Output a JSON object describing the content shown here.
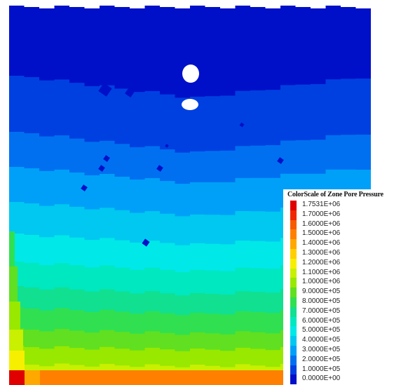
{
  "chart_data": {
    "type": "heatmap",
    "legend": {
      "title": "ColorScale of Zone Pore Pressure",
      "placement": "bottom-right",
      "entries": [
        {
          "label": "1.7531E+06",
          "value": 1753100,
          "color": "#e00000"
        },
        {
          "label": "1.7000E+06",
          "value": 1700000,
          "color": "#f02800"
        },
        {
          "label": "1.6000E+06",
          "value": 1600000,
          "color": "#f85a00"
        },
        {
          "label": "1.5000E+06",
          "value": 1500000,
          "color": "#ff8000"
        },
        {
          "label": "1.4000E+06",
          "value": 1400000,
          "color": "#ffa800"
        },
        {
          "label": "1.3000E+06",
          "value": 1300000,
          "color": "#ffd000"
        },
        {
          "label": "1.2000E+06",
          "value": 1200000,
          "color": "#f6f000"
        },
        {
          "label": "1.1000E+06",
          "value": 1100000,
          "color": "#c8f000"
        },
        {
          "label": "1.0000E+06",
          "value": 1000000,
          "color": "#98e800"
        },
        {
          "label": "9.0000E+05",
          "value": 900000,
          "color": "#60e020"
        },
        {
          "label": "8.0000E+05",
          "value": 800000,
          "color": "#30e050"
        },
        {
          "label": "7.0000E+05",
          "value": 700000,
          "color": "#10e090"
        },
        {
          "label": "6.0000E+05",
          "value": 600000,
          "color": "#00e8c0"
        },
        {
          "label": "5.0000E+05",
          "value": 500000,
          "color": "#00e8e8"
        },
        {
          "label": "4.0000E+05",
          "value": 400000,
          "color": "#00c8f0"
        },
        {
          "label": "3.0000E+05",
          "value": 300000,
          "color": "#00a0f8"
        },
        {
          "label": "2.0000E+05",
          "value": 200000,
          "color": "#0070f0"
        },
        {
          "label": "1.0000E+05",
          "value": 100000,
          "color": "#0040e0"
        },
        {
          "label": "0.0000E+00",
          "value": 0,
          "color": "#0010c8"
        }
      ]
    },
    "bands": [
      {
        "value": 0,
        "color": "#0010c8"
      },
      {
        "value": 100000,
        "color": "#0040e0"
      },
      {
        "value": 200000,
        "color": "#0070f0"
      },
      {
        "value": 300000,
        "color": "#00a0f8"
      },
      {
        "value": 400000,
        "color": "#00c8f0"
      },
      {
        "value": 500000,
        "color": "#00e8e8"
      },
      {
        "value": 600000,
        "color": "#00e8c0"
      },
      {
        "value": 700000,
        "color": "#10e090"
      },
      {
        "value": 800000,
        "color": "#30e050"
      },
      {
        "value": 900000,
        "color": "#60e020"
      },
      {
        "value": 1000000,
        "color": "#98e800"
      },
      {
        "value": 1100000,
        "color": "#c8f000"
      },
      {
        "value": 1200000,
        "color": "#f6f000"
      }
    ],
    "grid": false,
    "axes": false
  }
}
